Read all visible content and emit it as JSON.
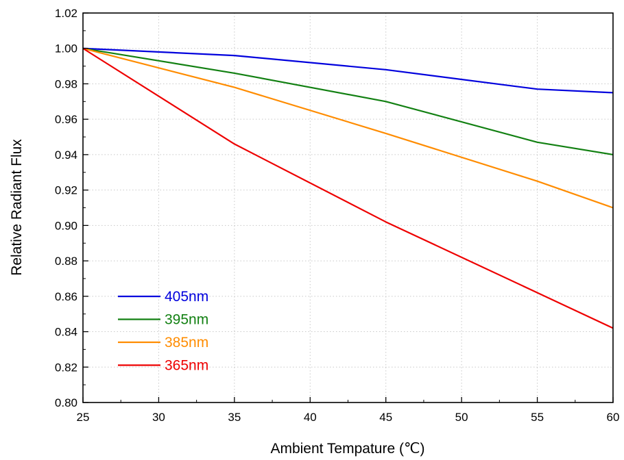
{
  "chart_data": {
    "type": "line",
    "xlabel": "Ambient Tempature  (℃)",
    "ylabel": "Relative Radiant Flux",
    "xlim": [
      25,
      60
    ],
    "ylim": [
      0.8,
      1.02
    ],
    "x_ticks": [
      "25",
      "30",
      "35",
      "40",
      "45",
      "50",
      "55",
      "60"
    ],
    "y_ticks": [
      "0.80",
      "0.82",
      "0.84",
      "0.86",
      "0.88",
      "0.90",
      "0.92",
      "0.94",
      "0.96",
      "0.98",
      "1.00",
      "1.02"
    ],
    "grid": true,
    "legend_position": "bottom-left",
    "x": [
      25,
      35,
      45,
      55,
      60
    ],
    "series": [
      {
        "name": "405nm",
        "color": "#0000dd",
        "values": [
          1.0,
          0.996,
          0.988,
          0.977,
          0.975
        ]
      },
      {
        "name": "395nm",
        "color": "#128012",
        "values": [
          1.0,
          0.986,
          0.97,
          0.947,
          0.94
        ]
      },
      {
        "name": "385nm",
        "color": "#ff8c00",
        "values": [
          1.0,
          0.978,
          0.952,
          0.925,
          0.91
        ]
      },
      {
        "name": "365nm",
        "color": "#ee0000",
        "values": [
          1.0,
          0.946,
          0.902,
          0.862,
          0.842
        ]
      }
    ]
  }
}
